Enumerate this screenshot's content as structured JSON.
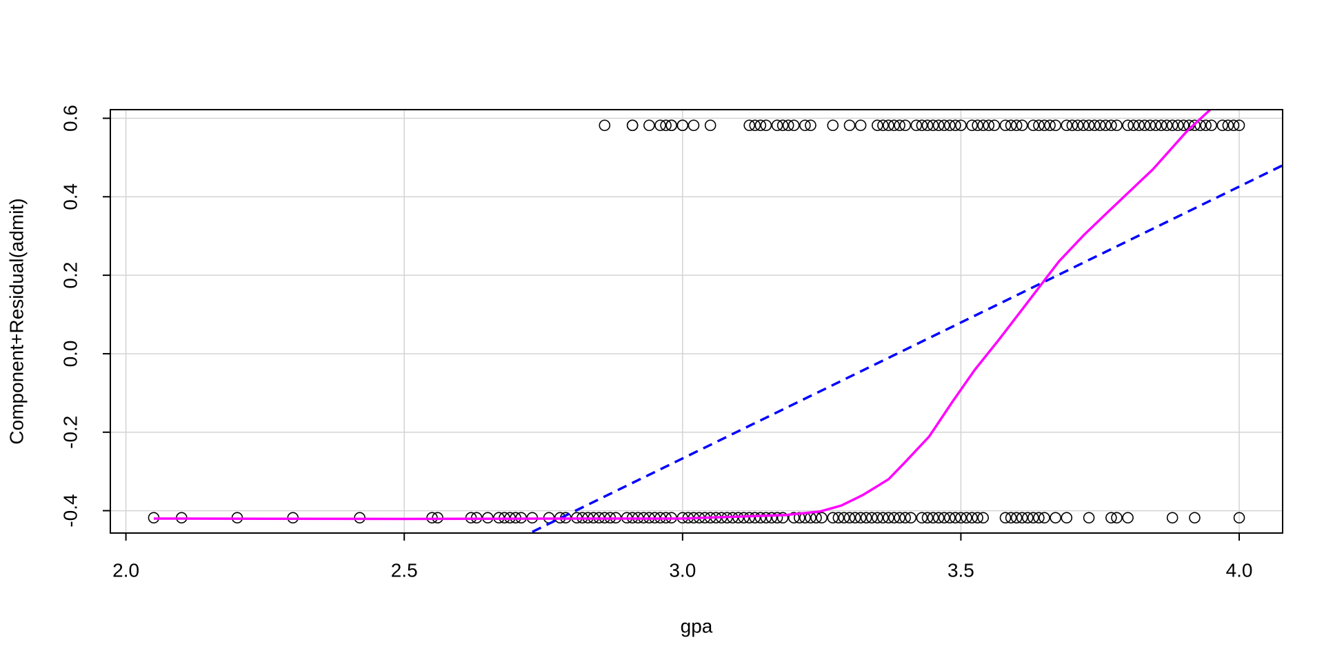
{
  "chart_data": {
    "type": "scatter",
    "xlabel": "gpa",
    "ylabel": "Component+Residual(admit)",
    "xlim": [
      1.972,
      4.078
    ],
    "ylim": [
      -0.457,
      0.622
    ],
    "xticks": [
      {
        "value": 2,
        "label": "2.0"
      },
      2.5,
      {
        "value": 3,
        "label": "3.0"
      },
      3.5,
      {
        "value": 4,
        "label": "4.0"
      }
    ],
    "yticks": [
      -0.4,
      -0.2,
      {
        "value": 0,
        "label": "0.0"
      },
      0.2,
      0.4,
      0.6
    ],
    "grid": true,
    "series": [
      {
        "type": "scatter",
        "color": "#000000",
        "x": [
          2.86,
          2.91,
          2.91,
          2.94,
          2.96,
          2.97,
          2.98,
          2.98,
          3.0,
          3.0,
          3.02,
          3.05,
          3.12,
          3.13,
          3.14,
          3.15,
          3.17,
          3.18,
          3.19,
          3.2,
          3.22,
          3.23,
          3.27,
          3.3,
          3.32,
          3.35,
          3.36,
          3.37,
          3.38,
          3.39,
          3.4,
          3.42,
          3.43,
          3.44,
          3.45,
          3.46,
          3.47,
          3.48,
          3.49,
          3.5,
          3.52,
          3.53,
          3.54,
          3.55,
          3.56,
          3.58,
          3.59,
          3.6,
          3.61,
          3.63,
          3.64,
          3.65,
          3.66,
          3.67,
          3.69,
          3.7,
          3.71,
          3.72,
          3.73,
          3.74,
          3.75,
          3.76,
          3.77,
          3.78,
          3.8,
          3.81,
          3.82,
          3.83,
          3.84,
          3.85,
          3.86,
          3.87,
          3.88,
          3.89,
          3.9,
          3.91,
          3.92,
          3.93,
          3.94,
          3.95,
          3.97,
          3.98,
          3.99,
          4.0,
          2.05,
          2.1,
          2.2,
          2.3,
          2.42,
          2.55,
          2.56,
          2.62,
          2.63,
          2.65,
          2.67,
          2.68,
          2.69,
          2.7,
          2.71,
          2.73,
          2.76,
          2.78,
          2.79,
          2.81,
          2.82,
          2.83,
          2.84,
          2.85,
          2.86,
          2.87,
          2.88,
          2.9,
          2.91,
          2.92,
          2.93,
          2.94,
          2.95,
          2.96,
          2.97,
          2.98,
          3.0,
          3.01,
          3.02,
          3.03,
          3.04,
          3.05,
          3.06,
          3.07,
          3.08,
          3.09,
          3.1,
          3.11,
          3.12,
          3.13,
          3.14,
          3.15,
          3.16,
          3.17,
          3.18,
          3.2,
          3.21,
          3.22,
          3.23,
          3.24,
          3.25,
          3.27,
          3.28,
          3.29,
          3.3,
          3.31,
          3.32,
          3.33,
          3.34,
          3.35,
          3.36,
          3.37,
          3.38,
          3.39,
          3.4,
          3.41,
          3.43,
          3.44,
          3.45,
          3.46,
          3.47,
          3.48,
          3.49,
          3.5,
          3.51,
          3.52,
          3.53,
          3.54,
          3.58,
          3.59,
          3.6,
          3.61,
          3.62,
          3.63,
          3.64,
          3.65,
          3.67,
          3.69,
          3.73,
          3.77,
          3.78,
          3.8,
          3.88,
          3.92,
          4.0
        ],
        "values": [
          0.582,
          0.582,
          0.582,
          0.582,
          0.582,
          0.582,
          0.582,
          0.582,
          0.582,
          0.582,
          0.582,
          0.582,
          0.582,
          0.582,
          0.582,
          0.582,
          0.582,
          0.582,
          0.582,
          0.582,
          0.582,
          0.582,
          0.582,
          0.582,
          0.582,
          0.582,
          0.582,
          0.582,
          0.582,
          0.582,
          0.582,
          0.582,
          0.582,
          0.582,
          0.582,
          0.582,
          0.582,
          0.582,
          0.582,
          0.582,
          0.582,
          0.582,
          0.582,
          0.582,
          0.582,
          0.582,
          0.582,
          0.582,
          0.582,
          0.582,
          0.582,
          0.582,
          0.582,
          0.582,
          0.582,
          0.582,
          0.582,
          0.582,
          0.582,
          0.582,
          0.582,
          0.582,
          0.582,
          0.582,
          0.582,
          0.582,
          0.582,
          0.582,
          0.582,
          0.582,
          0.582,
          0.582,
          0.582,
          0.582,
          0.582,
          0.582,
          0.582,
          0.582,
          0.582,
          0.582,
          0.582,
          0.582,
          0.582,
          0.582,
          -0.418,
          -0.418,
          -0.418,
          -0.418,
          -0.418,
          -0.418,
          -0.418,
          -0.418,
          -0.418,
          -0.418,
          -0.418,
          -0.418,
          -0.418,
          -0.418,
          -0.418,
          -0.418,
          -0.418,
          -0.418,
          -0.418,
          -0.418,
          -0.418,
          -0.418,
          -0.418,
          -0.418,
          -0.418,
          -0.418,
          -0.418,
          -0.418,
          -0.418,
          -0.418,
          -0.418,
          -0.418,
          -0.418,
          -0.418,
          -0.418,
          -0.418,
          -0.418,
          -0.418,
          -0.418,
          -0.418,
          -0.418,
          -0.418,
          -0.418,
          -0.418,
          -0.418,
          -0.418,
          -0.418,
          -0.418,
          -0.418,
          -0.418,
          -0.418,
          -0.418,
          -0.418,
          -0.418,
          -0.418,
          -0.418,
          -0.418,
          -0.418,
          -0.418,
          -0.418,
          -0.418,
          -0.418,
          -0.418,
          -0.418,
          -0.418,
          -0.418,
          -0.418,
          -0.418,
          -0.418,
          -0.418,
          -0.418,
          -0.418,
          -0.418,
          -0.418,
          -0.418,
          -0.418,
          -0.418,
          -0.418,
          -0.418,
          -0.418,
          -0.418,
          -0.418,
          -0.418,
          -0.418,
          -0.418,
          -0.418,
          -0.418,
          -0.418,
          -0.418,
          -0.418,
          -0.418,
          -0.418,
          -0.418,
          -0.418,
          -0.418,
          -0.418,
          -0.418,
          -0.418,
          -0.418,
          -0.418,
          -0.418,
          -0.418,
          -0.418,
          -0.418,
          -0.418
        ]
      },
      {
        "type": "line",
        "color": "#0000ff",
        "dashed": true,
        "x": [
          2.73,
          4.078
        ],
        "values": [
          -0.454,
          0.48
        ]
      },
      {
        "type": "line",
        "color": "#ff00ff",
        "dashed": false,
        "x": [
          2.05,
          2.5,
          2.8,
          3.0,
          3.186,
          3.247,
          3.285,
          3.324,
          3.37,
          3.4,
          3.443,
          3.485,
          3.525,
          3.569,
          3.615,
          3.676,
          3.722,
          3.764,
          3.845,
          3.906,
          3.948
        ],
        "values": [
          -0.42,
          -0.421,
          -0.42,
          -0.42,
          -0.411,
          -0.402,
          -0.387,
          -0.36,
          -0.32,
          -0.276,
          -0.211,
          -0.122,
          -0.041,
          0.037,
          0.122,
          0.235,
          0.304,
          0.361,
          0.47,
          0.567,
          0.622
        ]
      }
    ]
  }
}
